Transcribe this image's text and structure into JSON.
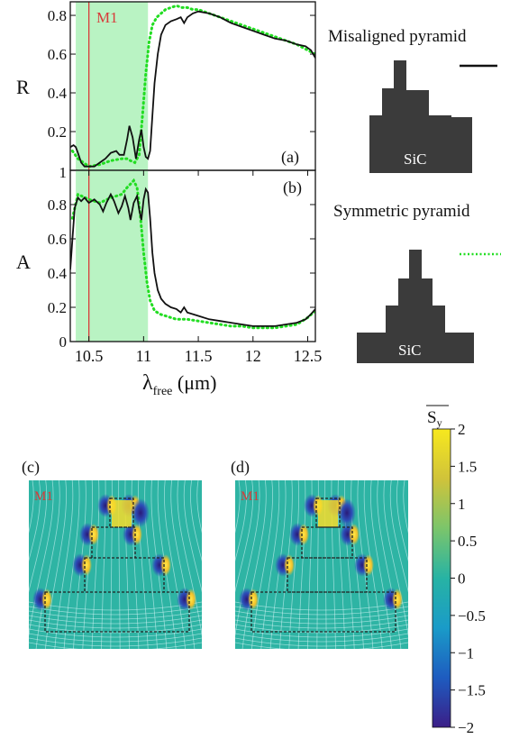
{
  "chart_data": [
    {
      "type": "line",
      "panel_label": "(a)",
      "ylabel": "R",
      "xlim": [
        10.33,
        12.57
      ],
      "ylim": [
        0,
        0.87
      ],
      "yticks": [
        "0.2",
        "0.4",
        "0.6",
        "0.8"
      ],
      "shaded_band": [
        10.38,
        11.04
      ],
      "marker_line": {
        "label": "M1",
        "x": 10.5
      },
      "series": [
        {
          "name": "Misaligned pyramid",
          "style": "solid",
          "x": [
            10.33,
            10.36,
            10.38,
            10.4,
            10.43,
            10.46,
            10.5,
            10.55,
            10.6,
            10.65,
            10.7,
            10.75,
            10.78,
            10.82,
            10.85,
            10.87,
            10.9,
            10.93,
            10.96,
            10.98,
            11.0,
            11.02,
            11.04,
            11.06,
            11.08,
            11.1,
            11.13,
            11.16,
            11.2,
            11.25,
            11.3,
            11.34,
            11.37,
            11.4,
            11.45,
            11.5,
            11.6,
            11.7,
            11.8,
            11.9,
            12.0,
            12.1,
            12.2,
            12.3,
            12.4,
            12.48,
            12.53,
            12.57
          ],
          "y": [
            0.12,
            0.13,
            0.12,
            0.09,
            0.04,
            0.02,
            0.02,
            0.02,
            0.04,
            0.06,
            0.09,
            0.1,
            0.08,
            0.08,
            0.16,
            0.23,
            0.17,
            0.06,
            0.16,
            0.21,
            0.12,
            0.07,
            0.06,
            0.1,
            0.28,
            0.45,
            0.6,
            0.7,
            0.75,
            0.77,
            0.78,
            0.79,
            0.76,
            0.79,
            0.81,
            0.82,
            0.81,
            0.79,
            0.76,
            0.74,
            0.72,
            0.7,
            0.68,
            0.67,
            0.65,
            0.64,
            0.62,
            0.58
          ]
        },
        {
          "name": "Symmetric pyramid",
          "style": "dotted",
          "x": [
            10.35,
            10.4,
            10.5,
            10.6,
            10.7,
            10.8,
            10.85,
            10.88,
            10.92,
            10.96,
            10.99,
            11.02,
            11.05,
            11.08,
            11.12,
            11.16,
            11.2,
            11.25,
            11.3,
            11.35,
            11.4,
            11.45,
            11.5,
            11.6,
            11.7,
            11.8,
            11.9,
            12.0,
            12.1,
            12.2,
            12.3,
            12.4,
            12.5,
            12.57
          ],
          "y": [
            0.1,
            0.06,
            0.02,
            0.03,
            0.05,
            0.06,
            0.06,
            0.05,
            0.04,
            0.08,
            0.28,
            0.5,
            0.66,
            0.75,
            0.79,
            0.81,
            0.83,
            0.84,
            0.85,
            0.84,
            0.84,
            0.83,
            0.83,
            0.81,
            0.79,
            0.77,
            0.75,
            0.73,
            0.71,
            0.69,
            0.67,
            0.65,
            0.62,
            0.6
          ]
        }
      ]
    },
    {
      "type": "line",
      "panel_label": "(b)",
      "ylabel": "A",
      "xlabel": "λ",
      "xlabel_sub": "free",
      "xlabel_unit": " (μm)",
      "xlim": [
        10.33,
        12.57
      ],
      "ylim": [
        0,
        1
      ],
      "xticks": [
        "10.5",
        "11",
        "11.5",
        "12",
        "12.5"
      ],
      "xtick_values": [
        10.5,
        11.0,
        11.5,
        12.0,
        12.5
      ],
      "yticks": [
        "0",
        "0.2",
        "0.4",
        "0.6",
        "0.8",
        "1"
      ],
      "shaded_band": [
        10.38,
        11.04
      ],
      "marker_line": {
        "label": "M1",
        "x": 10.5
      },
      "series": [
        {
          "name": "Misaligned pyramid",
          "style": "solid",
          "x": [
            10.33,
            10.35,
            10.37,
            10.4,
            10.43,
            10.46,
            10.5,
            10.55,
            10.6,
            10.63,
            10.66,
            10.7,
            10.73,
            10.77,
            10.8,
            10.83,
            10.86,
            10.88,
            10.91,
            10.94,
            10.96,
            10.98,
            11.0,
            11.02,
            11.04,
            11.06,
            11.08,
            11.1,
            11.13,
            11.16,
            11.2,
            11.25,
            11.3,
            11.34,
            11.37,
            11.4,
            11.5,
            11.6,
            11.7,
            11.8,
            11.9,
            12.0,
            12.1,
            12.2,
            12.3,
            12.4,
            12.48,
            12.53,
            12.57
          ],
          "y": [
            0.42,
            0.6,
            0.78,
            0.84,
            0.82,
            0.84,
            0.81,
            0.83,
            0.8,
            0.76,
            0.81,
            0.86,
            0.82,
            0.75,
            0.79,
            0.85,
            0.78,
            0.71,
            0.81,
            0.85,
            0.77,
            0.71,
            0.83,
            0.89,
            0.87,
            0.72,
            0.52,
            0.4,
            0.3,
            0.25,
            0.22,
            0.2,
            0.19,
            0.17,
            0.2,
            0.17,
            0.15,
            0.13,
            0.12,
            0.11,
            0.1,
            0.09,
            0.09,
            0.09,
            0.1,
            0.11,
            0.13,
            0.16,
            0.19
          ]
        },
        {
          "name": "Symmetric pyramid",
          "style": "dotted",
          "x": [
            10.35,
            10.4,
            10.5,
            10.6,
            10.7,
            10.8,
            10.85,
            10.88,
            10.91,
            10.94,
            10.97,
            11.0,
            11.03,
            11.06,
            11.1,
            11.15,
            11.2,
            11.25,
            11.3,
            11.35,
            11.4,
            11.5,
            11.6,
            11.7,
            11.8,
            11.9,
            12.0,
            12.1,
            12.2,
            12.3,
            12.4,
            12.5,
            12.57
          ],
          "y": [
            0.72,
            0.86,
            0.83,
            0.81,
            0.84,
            0.86,
            0.9,
            0.92,
            0.94,
            0.9,
            0.74,
            0.52,
            0.35,
            0.24,
            0.18,
            0.16,
            0.15,
            0.14,
            0.13,
            0.13,
            0.13,
            0.12,
            0.11,
            0.1,
            0.09,
            0.09,
            0.08,
            0.08,
            0.08,
            0.09,
            0.1,
            0.14,
            0.18
          ]
        }
      ]
    }
  ],
  "legend": {
    "misaligned": {
      "label": "Misaligned pyramid",
      "structure_label": "SiC",
      "line_color": "#111111"
    },
    "symmetric": {
      "label": "Symmetric pyramid",
      "structure_label": "SiC",
      "line_color": "#22dd22"
    }
  },
  "colors": {
    "band": "#b9f3c3",
    "marker_line": "#d83a3a",
    "solid_series": "#111111",
    "dotted_series": "#22dd22",
    "structure": "#3b3b3b"
  },
  "field_maps": [
    {
      "panel_label": "(c)",
      "marker_label": "M1"
    },
    {
      "panel_label": "(d)",
      "marker_label": "M1"
    }
  ],
  "colorbar": {
    "title": "S",
    "title_sub": "y",
    "min": -2,
    "max": 2,
    "ticks": [
      "2",
      "1.5",
      "1",
      "0.5",
      "0",
      "−0.5",
      "−1",
      "−1.5",
      "−2"
    ],
    "colormap": [
      "#3b1e87",
      "#1e5cc0",
      "#1a9bc8",
      "#27b3a4",
      "#7bc56b",
      "#d0c33a",
      "#f7e81e"
    ]
  }
}
